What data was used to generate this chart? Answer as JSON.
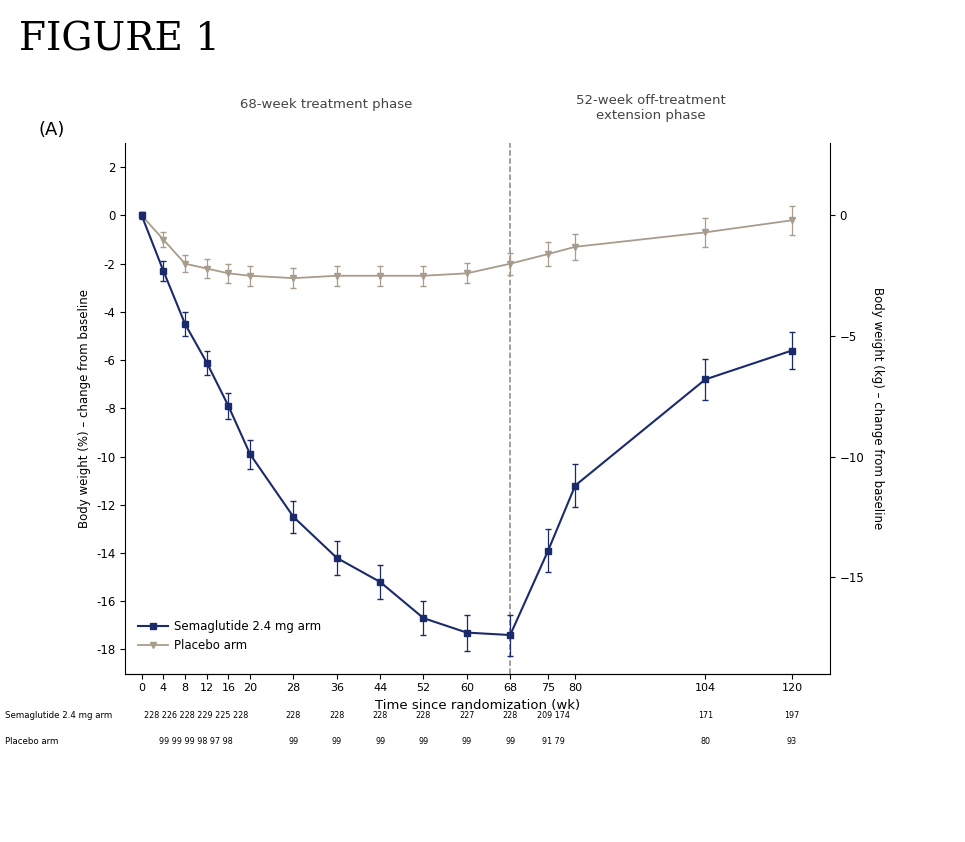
{
  "title": "FIGURE 1",
  "panel_label": "(A)",
  "phase1_label": "68-week treatment phase",
  "phase2_label": "52-week off-treatment\nextension phase",
  "xlabel": "Time since randomization (wk)",
  "ylabel_left": "Body weight (%) – change from baseline",
  "ylabel_right": "Body weight (kg) – change from baseline",
  "xticks": [
    0,
    4,
    8,
    12,
    16,
    20,
    28,
    36,
    44,
    52,
    60,
    68,
    75,
    80,
    104,
    120
  ],
  "xlim": [
    -3,
    127
  ],
  "ylim_left": [
    -19,
    3
  ],
  "dashed_x": 68,
  "sema_x": [
    0,
    4,
    8,
    12,
    16,
    20,
    28,
    36,
    44,
    52,
    60,
    68,
    75,
    80,
    104,
    120
  ],
  "sema_y": [
    0,
    -2.3,
    -4.5,
    -6.1,
    -7.9,
    -9.9,
    -12.5,
    -14.2,
    -15.2,
    -16.7,
    -17.3,
    -17.4,
    -13.9,
    -11.2,
    -6.8,
    -5.6
  ],
  "sema_err": [
    0.15,
    0.4,
    0.5,
    0.5,
    0.55,
    0.6,
    0.65,
    0.7,
    0.7,
    0.7,
    0.75,
    0.85,
    0.9,
    0.9,
    0.85,
    0.75
  ],
  "placebo_x": [
    0,
    4,
    8,
    12,
    16,
    20,
    28,
    36,
    44,
    52,
    60,
    68,
    75,
    80,
    104,
    120
  ],
  "placebo_y": [
    0,
    -1.0,
    -2.0,
    -2.2,
    -2.4,
    -2.5,
    -2.6,
    -2.5,
    -2.5,
    -2.5,
    -2.4,
    -2.0,
    -1.6,
    -1.3,
    -0.7,
    -0.2
  ],
  "placebo_err": [
    0.1,
    0.3,
    0.35,
    0.38,
    0.4,
    0.42,
    0.42,
    0.42,
    0.42,
    0.42,
    0.42,
    0.45,
    0.5,
    0.55,
    0.6,
    0.6
  ],
  "sema_color": "#1B2A6B",
  "placebo_color": "#A89C8C",
  "sema_label": "Semaglutide 2.4 mg arm",
  "placebo_label": "Placebo arm",
  "yticks_left": [
    2,
    0,
    -2,
    -4,
    -6,
    -8,
    -10,
    -12,
    -14,
    -16,
    -18
  ],
  "right_yticks_pct": [
    0,
    -5,
    -10,
    -15
  ],
  "right_ytick_labels": [
    "0",
    "−5",
    "−10",
    "−15"
  ],
  "background_color": "#FFFFFF",
  "table_rows": [
    {
      "label": "Semaglutide 2.4 mg arm",
      "groups": [
        {
          "x_center": 10,
          "text": "228 226 228 229 225 228"
        },
        {
          "x_center": 28,
          "text": "228"
        },
        {
          "x_center": 36,
          "text": "228"
        },
        {
          "x_center": 44,
          "text": "228"
        },
        {
          "x_center": 52,
          "text": "228"
        },
        {
          "x_center": 60,
          "text": "227"
        },
        {
          "x_center": 68,
          "text": "228"
        },
        {
          "x_center": 76,
          "text": "209 174"
        },
        {
          "x_center": 104,
          "text": "171"
        },
        {
          "x_center": 120,
          "text": "197"
        }
      ]
    },
    {
      "label": "Placebo arm",
      "groups": [
        {
          "x_center": 10,
          "text": "99 99 99 98 97 98"
        },
        {
          "x_center": 28,
          "text": "99"
        },
        {
          "x_center": 36,
          "text": "99"
        },
        {
          "x_center": 44,
          "text": "99"
        },
        {
          "x_center": 52,
          "text": "99"
        },
        {
          "x_center": 60,
          "text": "99"
        },
        {
          "x_center": 68,
          "text": "99"
        },
        {
          "x_center": 76,
          "text": "91 79"
        },
        {
          "x_center": 104,
          "text": "80"
        },
        {
          "x_center": 120,
          "text": "93"
        }
      ]
    }
  ]
}
